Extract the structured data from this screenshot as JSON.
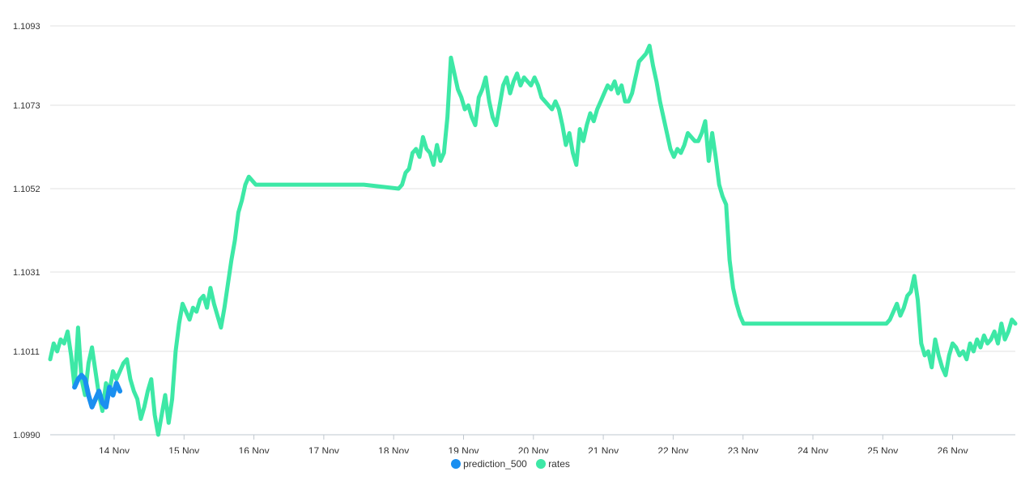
{
  "chart_data": {
    "type": "line",
    "title": "",
    "xlabel": "",
    "ylabel": "",
    "ylim": [
      1.099,
      1.1093
    ],
    "grid": true,
    "legend_position": "bottom",
    "y_ticks": [
      "1.1093",
      "1.1073",
      "1.1052",
      "1.1031",
      "1.1011",
      "1.0990"
    ],
    "y_tick_values": [
      1.1093,
      1.1073,
      1.1052,
      1.1031,
      1.1011,
      1.099
    ],
    "x_ticks": [
      "14 Nov",
      "15 Nov",
      "16 Nov",
      "17 Nov",
      "18 Nov",
      "19 Nov",
      "20 Nov",
      "21 Nov",
      "22 Nov",
      "23 Nov",
      "24 Nov",
      "25 Nov",
      "26 Nov"
    ],
    "x_domain_days": [
      13.0,
      26.85
    ],
    "series": [
      {
        "name": "rates",
        "color": "#3de8a6",
        "points": [
          [
            13.0,
            1.1009
          ],
          [
            13.05,
            1.1013
          ],
          [
            13.1,
            1.1011
          ],
          [
            13.15,
            1.1014
          ],
          [
            13.2,
            1.1013
          ],
          [
            13.25,
            1.1016
          ],
          [
            13.3,
            1.101
          ],
          [
            13.35,
            1.1002
          ],
          [
            13.4,
            1.1017
          ],
          [
            13.45,
            1.1004
          ],
          [
            13.5,
            1.1
          ],
          [
            13.55,
            1.1008
          ],
          [
            13.6,
            1.1012
          ],
          [
            13.65,
            1.1006
          ],
          [
            13.7,
            1.1
          ],
          [
            13.75,
            1.0996
          ],
          [
            13.8,
            1.1003
          ],
          [
            13.85,
            1.1001
          ],
          [
            13.9,
            1.1006
          ],
          [
            13.95,
            1.1004
          ],
          [
            14.0,
            1.1006
          ],
          [
            14.05,
            1.1008
          ],
          [
            14.1,
            1.1009
          ],
          [
            14.15,
            1.1004
          ],
          [
            14.2,
            1.1001
          ],
          [
            14.25,
            1.0999
          ],
          [
            14.3,
            1.0994
          ],
          [
            14.35,
            1.0997
          ],
          [
            14.4,
            1.1001
          ],
          [
            14.45,
            1.1004
          ],
          [
            14.5,
            1.0995
          ],
          [
            14.55,
            1.099
          ],
          [
            14.6,
            1.0995
          ],
          [
            14.65,
            1.1
          ],
          [
            14.7,
            1.0993
          ],
          [
            14.75,
            1.0999
          ],
          [
            14.8,
            1.1011
          ],
          [
            14.85,
            1.1018
          ],
          [
            14.9,
            1.1023
          ],
          [
            14.95,
            1.1021
          ],
          [
            15.0,
            1.1019
          ],
          [
            15.05,
            1.1022
          ],
          [
            15.1,
            1.1021
          ],
          [
            15.15,
            1.1024
          ],
          [
            15.2,
            1.1025
          ],
          [
            15.25,
            1.1022
          ],
          [
            15.3,
            1.1027
          ],
          [
            15.35,
            1.1023
          ],
          [
            15.4,
            1.102
          ],
          [
            15.45,
            1.1017
          ],
          [
            15.5,
            1.1022
          ],
          [
            15.55,
            1.1028
          ],
          [
            15.6,
            1.1034
          ],
          [
            15.65,
            1.1039
          ],
          [
            15.7,
            1.1046
          ],
          [
            15.75,
            1.1049
          ],
          [
            15.8,
            1.1053
          ],
          [
            15.85,
            1.1055
          ],
          [
            15.9,
            1.1054
          ],
          [
            15.95,
            1.1053
          ],
          [
            16.5,
            1.1053
          ],
          [
            17.0,
            1.1053
          ],
          [
            17.5,
            1.1053
          ],
          [
            18.0,
            1.1052
          ],
          [
            18.05,
            1.1053
          ],
          [
            18.1,
            1.1056
          ],
          [
            18.15,
            1.1057
          ],
          [
            18.2,
            1.1061
          ],
          [
            18.25,
            1.1062
          ],
          [
            18.3,
            1.106
          ],
          [
            18.35,
            1.1065
          ],
          [
            18.4,
            1.1062
          ],
          [
            18.45,
            1.1061
          ],
          [
            18.5,
            1.1058
          ],
          [
            18.55,
            1.1063
          ],
          [
            18.6,
            1.1059
          ],
          [
            18.65,
            1.1061
          ],
          [
            18.7,
            1.107
          ],
          [
            18.75,
            1.1085
          ],
          [
            18.8,
            1.1081
          ],
          [
            18.85,
            1.1077
          ],
          [
            18.9,
            1.1075
          ],
          [
            18.95,
            1.1072
          ],
          [
            19.0,
            1.1073
          ],
          [
            19.05,
            1.107
          ],
          [
            19.1,
            1.1068
          ],
          [
            19.15,
            1.1075
          ],
          [
            19.2,
            1.1077
          ],
          [
            19.25,
            1.108
          ],
          [
            19.3,
            1.1074
          ],
          [
            19.35,
            1.107
          ],
          [
            19.4,
            1.1068
          ],
          [
            19.45,
            1.1073
          ],
          [
            19.5,
            1.1078
          ],
          [
            19.55,
            1.108
          ],
          [
            19.6,
            1.1076
          ],
          [
            19.65,
            1.1079
          ],
          [
            19.7,
            1.1081
          ],
          [
            19.75,
            1.1078
          ],
          [
            19.8,
            1.108
          ],
          [
            19.85,
            1.1079
          ],
          [
            19.9,
            1.1078
          ],
          [
            19.95,
            1.108
          ],
          [
            20.0,
            1.1078
          ],
          [
            20.05,
            1.1075
          ],
          [
            20.1,
            1.1074
          ],
          [
            20.15,
            1.1073
          ],
          [
            20.2,
            1.1072
          ],
          [
            20.25,
            1.1074
          ],
          [
            20.3,
            1.1072
          ],
          [
            20.35,
            1.1068
          ],
          [
            20.4,
            1.1063
          ],
          [
            20.45,
            1.1066
          ],
          [
            20.5,
            1.1061
          ],
          [
            20.55,
            1.1058
          ],
          [
            20.6,
            1.1067
          ],
          [
            20.65,
            1.1064
          ],
          [
            20.7,
            1.1068
          ],
          [
            20.75,
            1.1071
          ],
          [
            20.8,
            1.1069
          ],
          [
            20.85,
            1.1072
          ],
          [
            20.9,
            1.1074
          ],
          [
            20.95,
            1.1076
          ],
          [
            21.0,
            1.1078
          ],
          [
            21.05,
            1.1077
          ],
          [
            21.1,
            1.1079
          ],
          [
            21.15,
            1.1076
          ],
          [
            21.2,
            1.1078
          ],
          [
            21.25,
            1.1074
          ],
          [
            21.3,
            1.1074
          ],
          [
            21.35,
            1.1076
          ],
          [
            21.4,
            1.108
          ],
          [
            21.45,
            1.1084
          ],
          [
            21.5,
            1.1085
          ],
          [
            21.55,
            1.1086
          ],
          [
            21.6,
            1.1088
          ],
          [
            21.65,
            1.1083
          ],
          [
            21.7,
            1.1079
          ],
          [
            21.75,
            1.1074
          ],
          [
            21.8,
            1.107
          ],
          [
            21.85,
            1.1066
          ],
          [
            21.9,
            1.1062
          ],
          [
            21.95,
            1.106
          ],
          [
            22.0,
            1.1062
          ],
          [
            22.05,
            1.1061
          ],
          [
            22.1,
            1.1063
          ],
          [
            22.15,
            1.1066
          ],
          [
            22.2,
            1.1065
          ],
          [
            22.25,
            1.1064
          ],
          [
            22.3,
            1.1064
          ],
          [
            22.35,
            1.1066
          ],
          [
            22.4,
            1.1069
          ],
          [
            22.45,
            1.1059
          ],
          [
            22.5,
            1.1066
          ],
          [
            22.55,
            1.106
          ],
          [
            22.6,
            1.1053
          ],
          [
            22.65,
            1.105
          ],
          [
            22.7,
            1.1048
          ],
          [
            22.75,
            1.1034
          ],
          [
            22.8,
            1.1027
          ],
          [
            22.85,
            1.1023
          ],
          [
            22.9,
            1.102
          ],
          [
            22.95,
            1.1018
          ],
          [
            23.0,
            1.1018
          ],
          [
            23.5,
            1.1018
          ],
          [
            24.0,
            1.1018
          ],
          [
            24.5,
            1.1018
          ],
          [
            25.0,
            1.1018
          ],
          [
            25.05,
            1.1019
          ],
          [
            25.1,
            1.1021
          ],
          [
            25.15,
            1.1023
          ],
          [
            25.2,
            1.102
          ],
          [
            25.25,
            1.1022
          ],
          [
            25.3,
            1.1025
          ],
          [
            25.35,
            1.1026
          ],
          [
            25.4,
            1.103
          ],
          [
            25.45,
            1.1024
          ],
          [
            25.5,
            1.1013
          ],
          [
            25.55,
            1.101
          ],
          [
            25.6,
            1.1011
          ],
          [
            25.65,
            1.1007
          ],
          [
            25.7,
            1.1014
          ],
          [
            25.75,
            1.101
          ],
          [
            25.8,
            1.1007
          ],
          [
            25.85,
            1.1005
          ],
          [
            25.9,
            1.101
          ],
          [
            25.95,
            1.1013
          ],
          [
            26.0,
            1.1012
          ],
          [
            26.05,
            1.101
          ],
          [
            26.1,
            1.1011
          ],
          [
            26.15,
            1.1009
          ],
          [
            26.2,
            1.1013
          ],
          [
            26.25,
            1.1011
          ],
          [
            26.3,
            1.1014
          ],
          [
            26.35,
            1.1012
          ],
          [
            26.4,
            1.1015
          ],
          [
            26.45,
            1.1013
          ],
          [
            26.5,
            1.1014
          ],
          [
            26.55,
            1.1016
          ],
          [
            26.6,
            1.1013
          ],
          [
            26.65,
            1.1018
          ],
          [
            26.7,
            1.1014
          ],
          [
            26.75,
            1.1016
          ],
          [
            26.8,
            1.1019
          ],
          [
            26.85,
            1.1018
          ]
        ]
      },
      {
        "name": "prediction_500",
        "color": "#1a8ff0",
        "points": [
          [
            13.35,
            1.1002
          ],
          [
            13.4,
            1.1004
          ],
          [
            13.45,
            1.1005
          ],
          [
            13.5,
            1.1004
          ],
          [
            13.55,
            1.1
          ],
          [
            13.6,
            1.0997
          ],
          [
            13.65,
            1.0999
          ],
          [
            13.7,
            1.1001
          ],
          [
            13.75,
            1.0998
          ],
          [
            13.8,
            1.0997
          ],
          [
            13.85,
            1.1002
          ],
          [
            13.9,
            1.1
          ],
          [
            13.95,
            1.1003
          ],
          [
            14.0,
            1.1001
          ]
        ]
      }
    ]
  },
  "legend": {
    "items": [
      {
        "label": "prediction_500",
        "color": "#1a8ff0"
      },
      {
        "label": "rates",
        "color": "#3de8a6"
      }
    ]
  }
}
